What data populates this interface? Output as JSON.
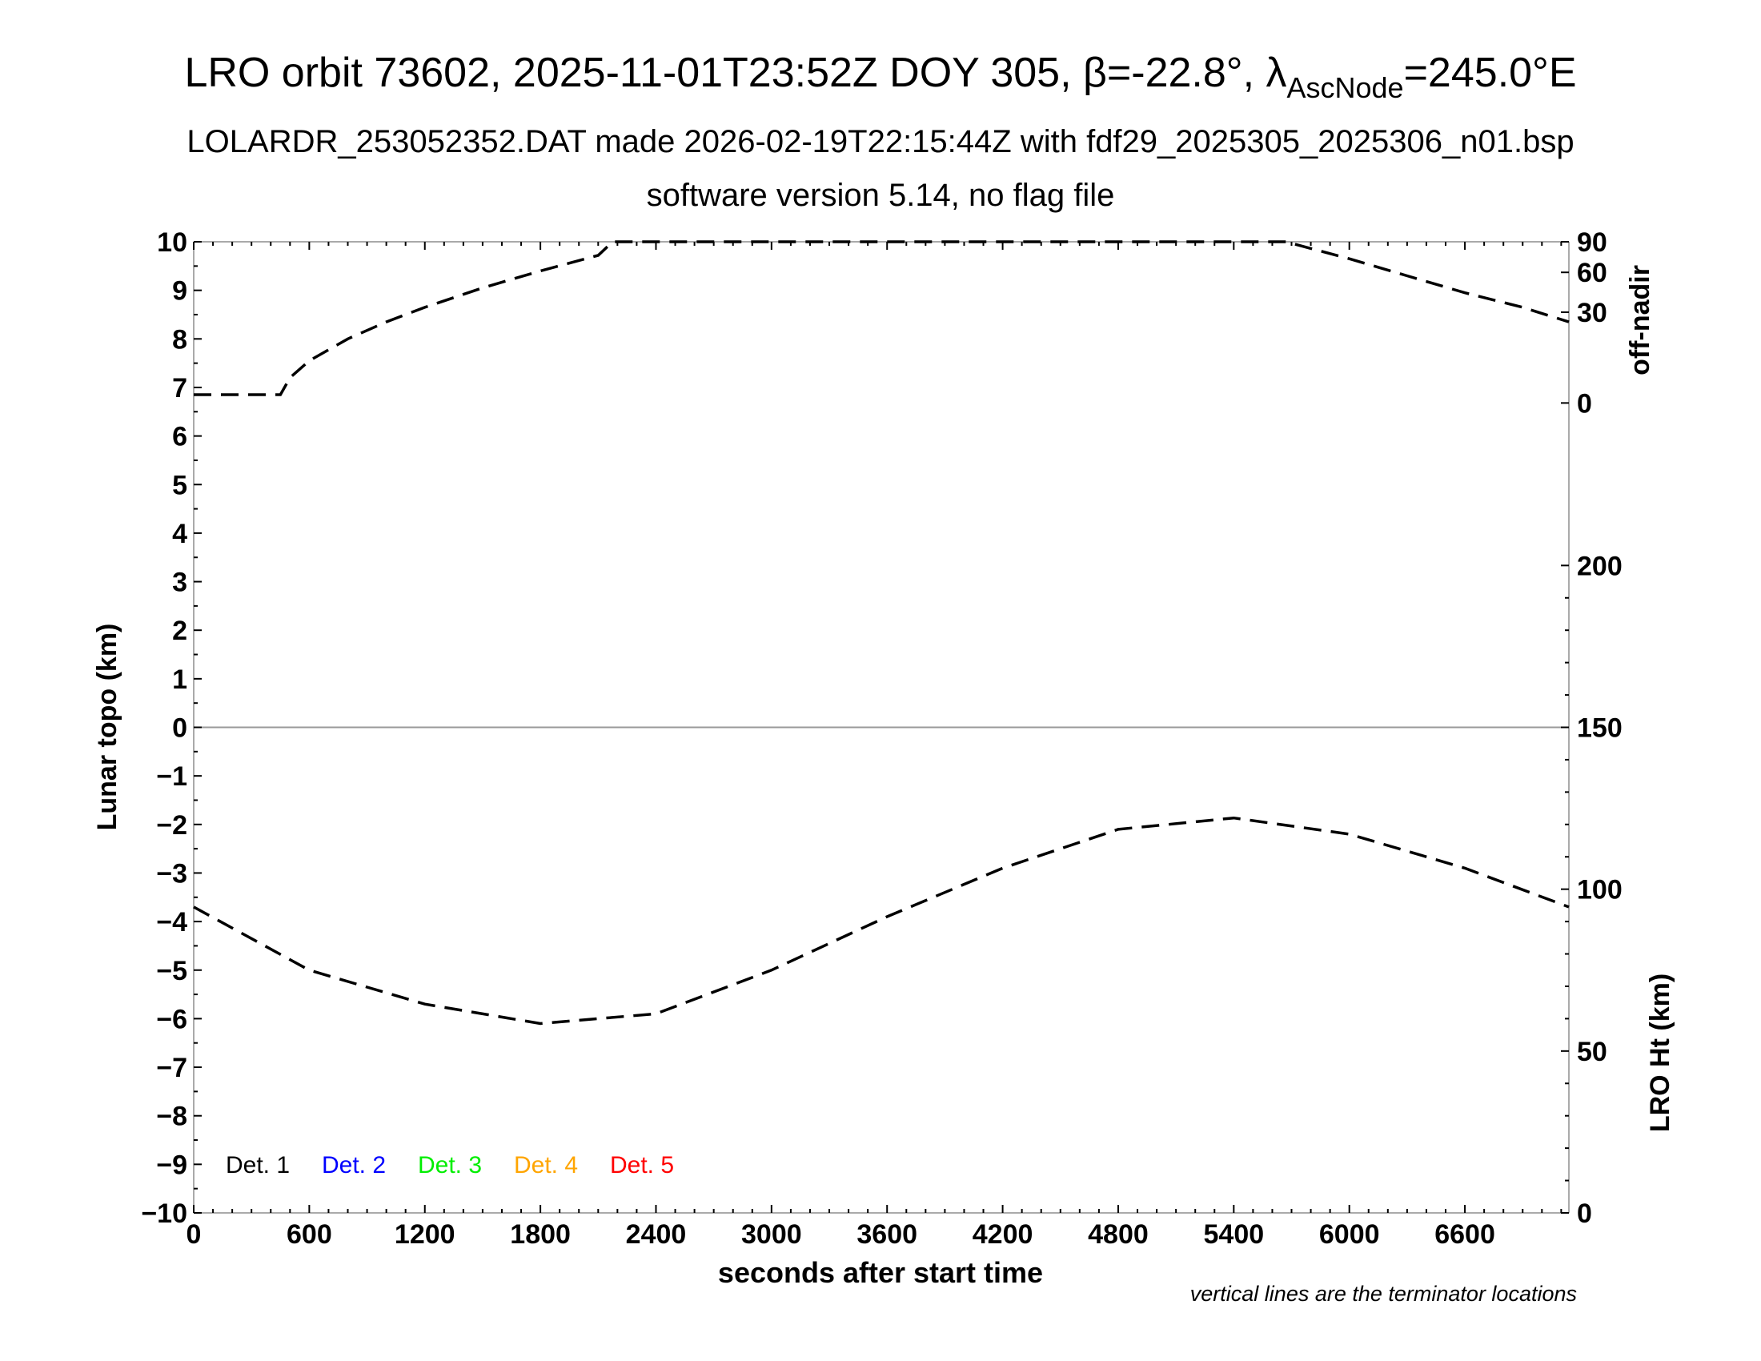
{
  "chart_data": {
    "type": "line",
    "title": "LRO orbit 73602, 2025-11-01T23:52Z DOY 305, β=-22.8°, λ",
    "title_sub": "AscNode",
    "title_end": "=245.0°E",
    "subtitle": "LOLARDR_253052352.DAT made 2026-02-19T22:15:44Z with fdf29_2025305_2025306_n01.bsp",
    "subtitle2": "software version 5.14, no flag file",
    "xlabel": "seconds after start time",
    "ylabel": "Lunar topo (km)",
    "y2label_top": "off-nadir",
    "y2label_bottom": "LRO Ht (km)",
    "footnote": "vertical lines are the terminator locations",
    "xlim": [
      0,
      7140
    ],
    "ylim": [
      -10,
      10
    ],
    "xticks": [
      "0",
      "600",
      "1200",
      "1800",
      "2400",
      "3000",
      "3600",
      "4200",
      "4800",
      "5400",
      "6000",
      "6600"
    ],
    "yticks": [
      "10",
      "9",
      "8",
      "7",
      "6",
      "5",
      "4",
      "3",
      "2",
      "1",
      "0",
      "−1",
      "−2",
      "−3",
      "−4",
      "−5",
      "−6",
      "−7",
      "−8",
      "−9",
      "−10"
    ],
    "offnadir_ticks": [
      {
        "label": "90",
        "value": 90,
        "topo": 10
      },
      {
        "label": "60",
        "value": 60,
        "topo": 9.37
      },
      {
        "label": "30",
        "value": 30,
        "topo": 8.55
      },
      {
        "label": "0",
        "value": 0,
        "topo": 6.68
      }
    ],
    "lroht_ticks": [
      "0",
      "50",
      "100",
      "150",
      "200"
    ],
    "lroht_range": [
      0,
      300
    ],
    "legend": [
      {
        "label": "Det. 1",
        "color": "#000000"
      },
      {
        "label": "Det. 2",
        "color": "#0000ff"
      },
      {
        "label": "Det. 3",
        "color": "#00ee00"
      },
      {
        "label": "Det. 4",
        "color": "#ffa500"
      },
      {
        "label": "Det. 5",
        "color": "#ff0000"
      }
    ],
    "series": [
      {
        "name": "off-nadir (topo-scaled)",
        "style": "dashed",
        "x": [
          0,
          450,
          500,
          600,
          800,
          1000,
          1200,
          1500,
          1800,
          2100,
          2175,
          5670,
          6000,
          6300,
          6600,
          6900,
          7140
        ],
        "y": [
          6.85,
          6.85,
          7.2,
          7.55,
          8.0,
          8.35,
          8.65,
          9.05,
          9.4,
          9.72,
          10,
          10,
          9.65,
          9.3,
          8.95,
          8.65,
          8.35
        ]
      },
      {
        "name": "LRO Ht (km)",
        "style": "dashed",
        "x": [
          0,
          600,
          1200,
          1800,
          2400,
          3000,
          3600,
          4200,
          4800,
          5400,
          6000,
          6600,
          7140
        ],
        "y": [
          94.5,
          75,
          64.5,
          58.5,
          61.5,
          75,
          91.5,
          106.5,
          118.5,
          122,
          117,
          106.5,
          94.5
        ]
      }
    ]
  }
}
